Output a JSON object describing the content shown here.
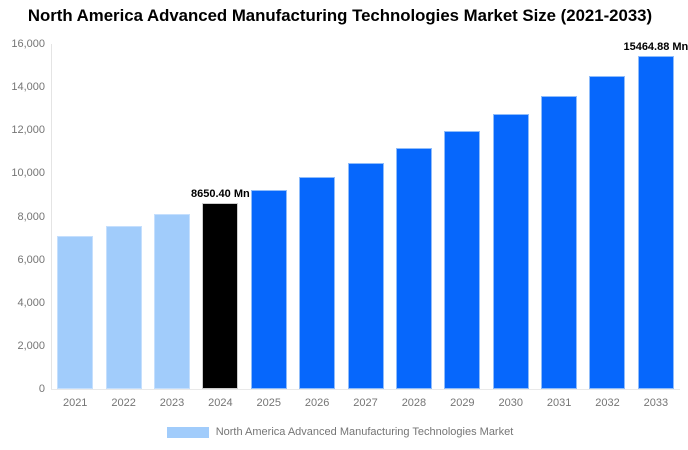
{
  "chart_data": {
    "type": "bar",
    "title": "North America Advanced Manufacturing Technologies Market Size (2021-2033)",
    "categories": [
      "2021",
      "2022",
      "2023",
      "2024",
      "2025",
      "2026",
      "2027",
      "2028",
      "2029",
      "2030",
      "2031",
      "2032",
      "2033"
    ],
    "values": [
      7100,
      7580,
      8110,
      8650.4,
      9230,
      9845,
      10500,
      11200,
      11945,
      12740,
      13590,
      14500,
      15464.88
    ],
    "unit": "Mn",
    "segments": [
      "past",
      "past",
      "past",
      "current",
      "forecast",
      "forecast",
      "forecast",
      "forecast",
      "forecast",
      "forecast",
      "forecast",
      "forecast",
      "forecast"
    ],
    "segment_styles": {
      "past": {
        "fill": "#A1CCFB",
        "stroke": "#C5DFFD"
      },
      "current": {
        "fill": "#000000",
        "stroke": "#CCCCCC"
      },
      "forecast": {
        "fill": "#0667FC",
        "stroke": "#8FBCFA"
      }
    },
    "data_labels": [
      {
        "category": "2024",
        "text": "8650.40 Mn"
      },
      {
        "category": "2033",
        "text": "15464.88 Mn"
      }
    ],
    "xlabel": "",
    "ylabel": "",
    "ylim": [
      0,
      16000
    ],
    "ytick_interval": 2000,
    "ytick_labels": [
      "0",
      "2,000",
      "4,000",
      "6,000",
      "8,000",
      "10,000",
      "12,000",
      "14,000",
      "16,000"
    ],
    "grid": false,
    "legend_position": "bottom"
  },
  "legend": {
    "label": "North America Advanced Manufacturing Technologies Market"
  },
  "colors": {
    "axis_line": "#e4e4e4",
    "axis_text": "#757575",
    "title_text": "#000000"
  }
}
